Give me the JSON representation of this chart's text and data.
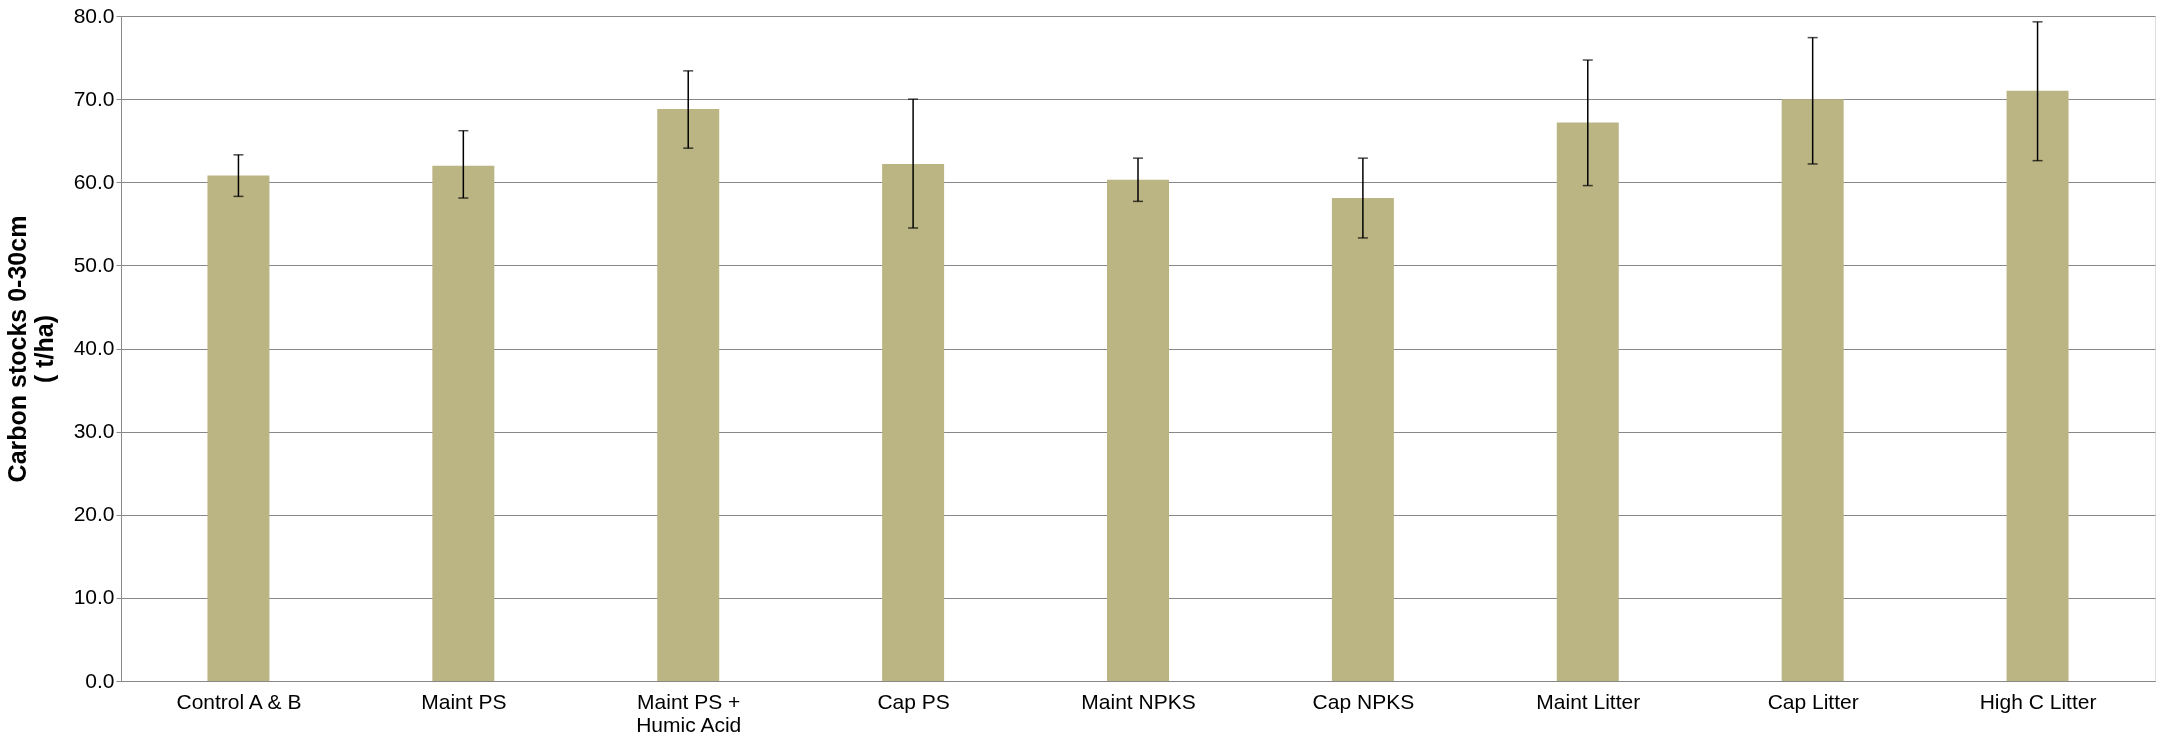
{
  "chart_data": {
    "type": "bar",
    "ylabel": "Carbon stocks   0-30cm\n( t/ha)",
    "categories": [
      "Control A & B",
      "Maint PS",
      "Maint PS + Humic Acid",
      "Cap PS",
      "Maint NPKS",
      "Cap NPKS",
      "Maint  Litter",
      "Cap Litter",
      "High C Litter"
    ],
    "values": [
      60.8,
      62.0,
      68.8,
      62.2,
      60.3,
      58.1,
      67.2,
      70.0,
      71.0
    ],
    "errors": [
      [
        58.3,
        63.3
      ],
      [
        58.1,
        66.2
      ],
      [
        64.1,
        73.4
      ],
      [
        54.5,
        70.0
      ],
      [
        57.7,
        62.9
      ],
      [
        53.3,
        62.9
      ],
      [
        59.6,
        74.7
      ],
      [
        62.2,
        77.4
      ],
      [
        62.6,
        79.3
      ]
    ],
    "color": "#bbb584",
    "ylim": [
      0,
      80
    ],
    "yticks": [
      {
        "value": 0,
        "label": "0.0"
      },
      {
        "value": 10,
        "label": "10.0"
      },
      {
        "value": 20,
        "label": "20.0"
      },
      {
        "value": 30,
        "label": "30.0"
      },
      {
        "value": 40,
        "label": "40.0"
      },
      {
        "value": 50,
        "label": "50.0"
      },
      {
        "value": 60,
        "label": "60.0"
      },
      {
        "value": 70,
        "label": "70.0"
      },
      {
        "value": 80,
        "label": "80.0"
      }
    ],
    "grid": "y"
  }
}
